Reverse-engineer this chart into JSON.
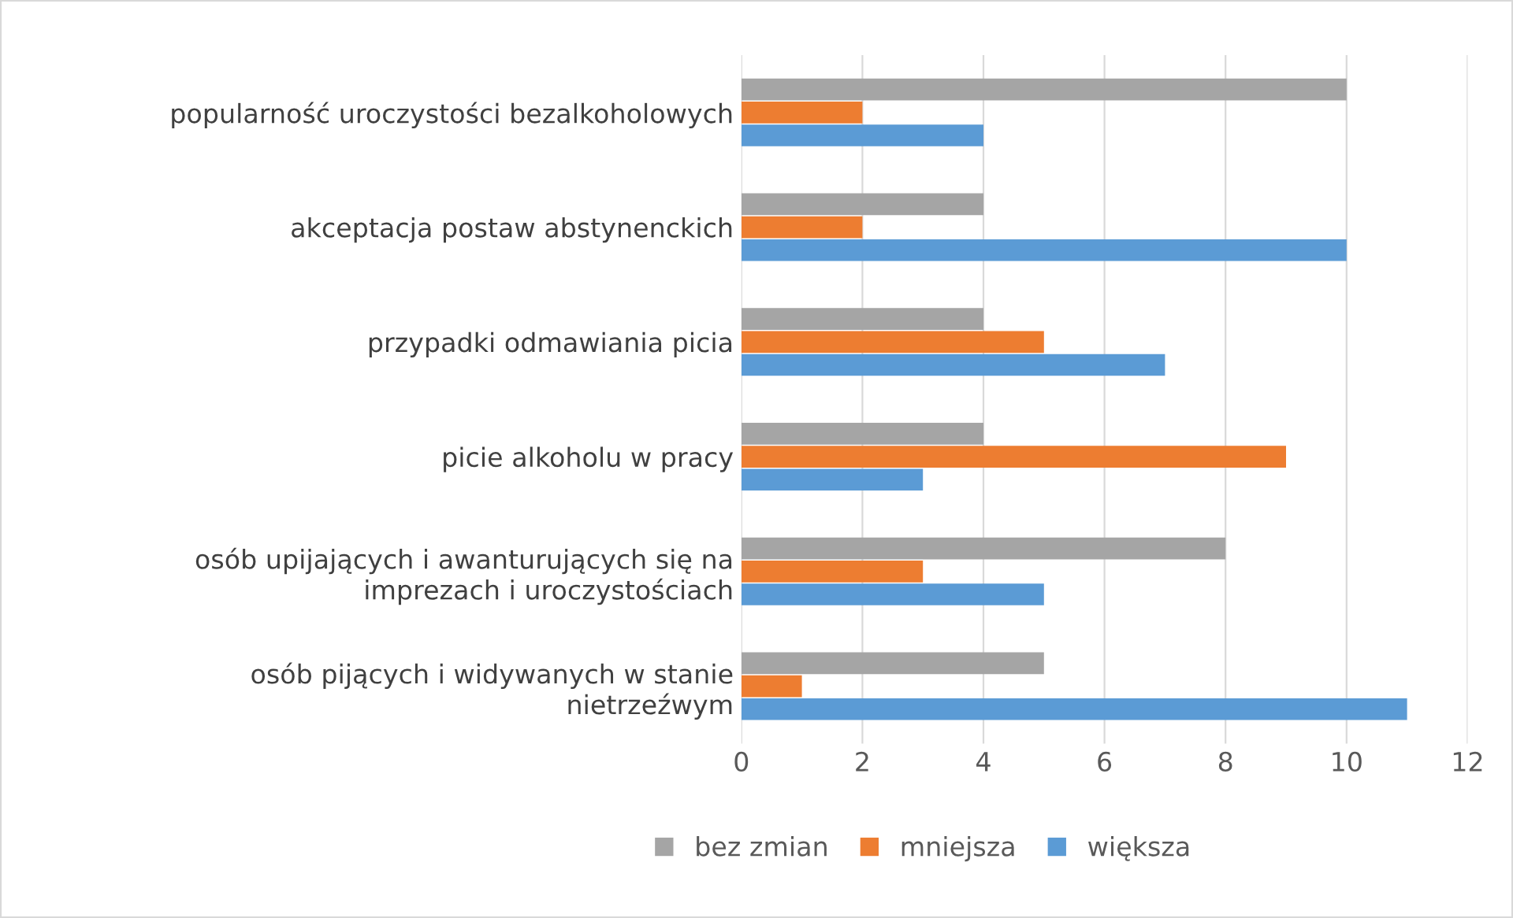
{
  "chart_data": {
    "type": "bar",
    "orientation": "horizontal",
    "categories": [
      "popularność uroczystości bezalkoholowych",
      "akceptacja postaw abstynenckich",
      "przypadki odmawiania picia",
      "picie alkoholu w pracy",
      "osób upijających i awanturujących się na\nimprezach i uroczystościach",
      "osób pijących i widywanych w stanie\nnietrzeźwym"
    ],
    "series": [
      {
        "name": "bez zmian",
        "color": "#a5a5a5",
        "values": [
          10,
          4,
          4,
          4,
          8,
          5
        ]
      },
      {
        "name": "mniejsza",
        "color": "#ed7d31",
        "values": [
          2,
          2,
          5,
          9,
          3,
          1
        ]
      },
      {
        "name": "większa",
        "color": "#5b9bd5",
        "values": [
          4,
          10,
          7,
          3,
          5,
          11
        ]
      }
    ],
    "xlim": [
      0,
      12
    ],
    "xticks": [
      0,
      2,
      4,
      6,
      8,
      10,
      12
    ],
    "grid": "x",
    "legend": "bottom"
  }
}
